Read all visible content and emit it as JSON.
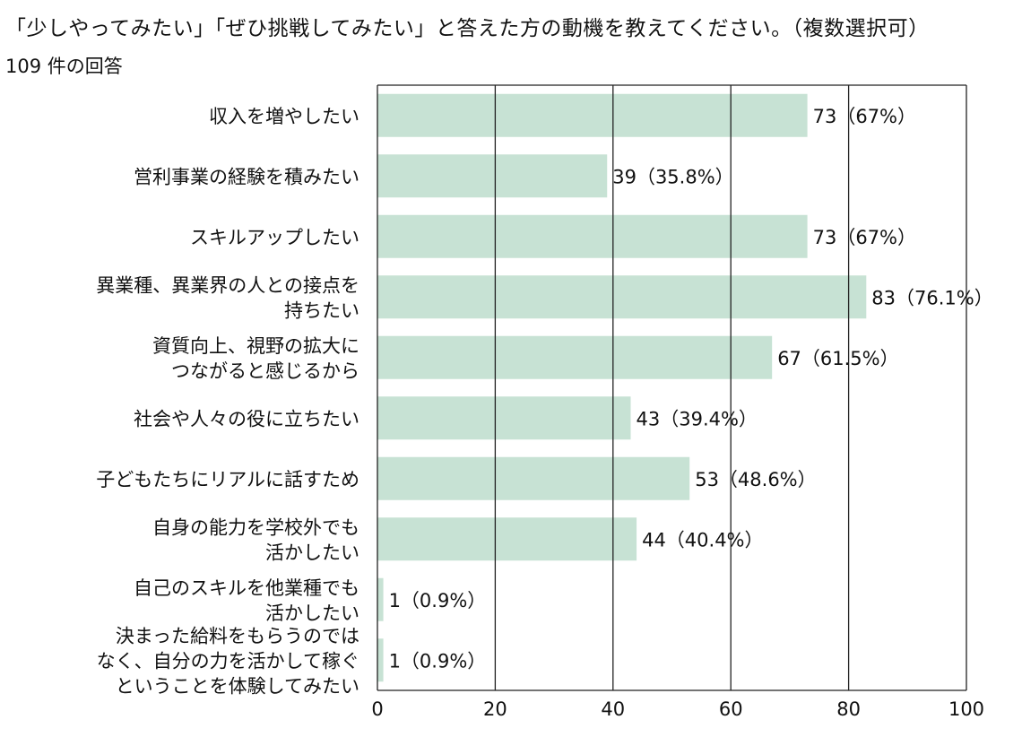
{
  "chart_data": {
    "type": "bar",
    "orientation": "horizontal",
    "title": "「少しやってみたい」「ぜひ挑戦してみたい」と答えた方の動機を教えてください。（複数選択可）",
    "subtitle": "109 件の回答",
    "categories": [
      [
        "収入を増やしたい"
      ],
      [
        "営利事業の経験を積みたい"
      ],
      [
        "スキルアップしたい"
      ],
      [
        "異業種、異業界の人との接点を",
        "持ちたい"
      ],
      [
        "資質向上、視野の拡大に",
        "つながると感じるから"
      ],
      [
        "社会や人々の役に立ちたい"
      ],
      [
        "子どもたちにリアルに話すため"
      ],
      [
        "自身の能力を学校外でも",
        "活かしたい"
      ],
      [
        "自己のスキルを他業種でも",
        "活かしたい"
      ],
      [
        "決まった給料をもらうのでは",
        "なく、自分の力を活かして稼ぐ",
        "ということを体験してみたい"
      ]
    ],
    "values": [
      73,
      39,
      73,
      83,
      67,
      43,
      53,
      44,
      1,
      1
    ],
    "data_labels": [
      "73（67%）",
      "39（35.8%）",
      "73（67%）",
      "83（76.1%）",
      "67（61.5%）",
      "43（39.4%）",
      "53（48.6%）",
      "44（40.4%）",
      "1（0.9%）",
      "1（0.9%）"
    ],
    "xlim": [
      0,
      100
    ],
    "xticks": [
      0,
      20,
      40,
      60,
      80,
      100
    ],
    "grid": true,
    "bar_color": "#c7e2d4",
    "grid_color": "#222222"
  }
}
